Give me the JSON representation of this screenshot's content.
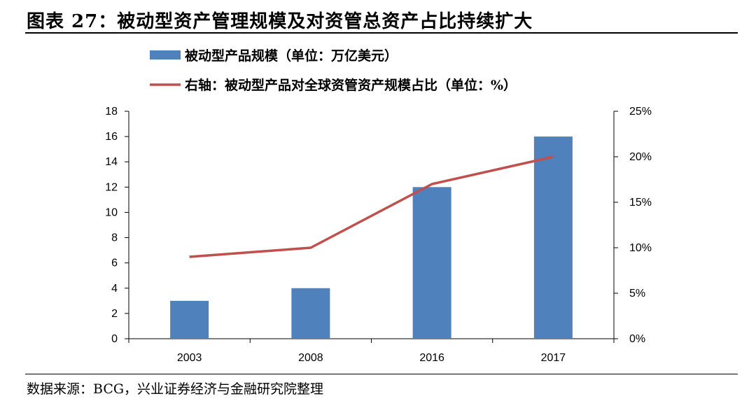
{
  "title": "图表 27：被动型资产管理规模及对资管总资产占比持续扩大",
  "source": "数据来源：BCG，兴业证券经济与金融研究院整理",
  "colors": {
    "bar": "#4f81bd",
    "line": "#c0504d",
    "axis": "#000000"
  },
  "chart_data": {
    "type": "bar",
    "categories": [
      "2003",
      "2008",
      "2016",
      "2017"
    ],
    "series": [
      {
        "name": "被动型产品规模（单位：万亿美元）",
        "type": "bar",
        "axis": "left",
        "values": [
          3,
          4,
          12,
          16
        ]
      },
      {
        "name": "右轴：被动型产品对全球资管资产规模占比（单位：%）",
        "type": "line",
        "axis": "right",
        "values": [
          9,
          10,
          17,
          20
        ]
      }
    ],
    "y_left": {
      "min": 0,
      "max": 18,
      "step": 2,
      "ticks": [
        "0",
        "2",
        "4",
        "6",
        "8",
        "10",
        "12",
        "14",
        "16",
        "18"
      ]
    },
    "y_right": {
      "min": 0,
      "max": 25,
      "step": 5,
      "ticks": [
        "0%",
        "5%",
        "10%",
        "15%",
        "20%",
        "25%"
      ]
    },
    "legend_position": "top",
    "grid": false
  }
}
